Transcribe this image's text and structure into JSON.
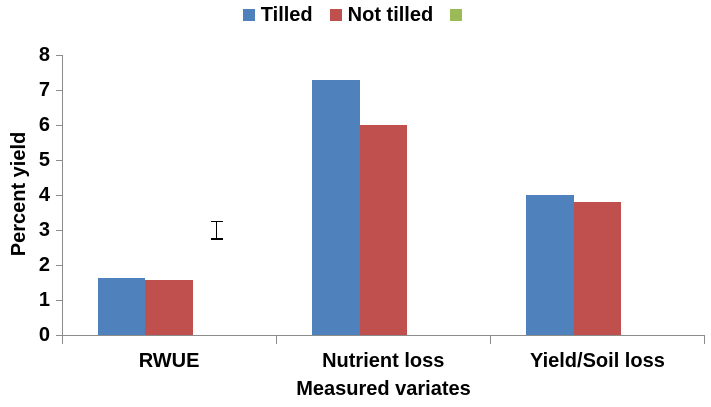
{
  "chart_data": {
    "type": "bar",
    "title": "",
    "categories": [
      "RWUE",
      "Nutrient loss",
      "Yield/Soil loss"
    ],
    "series": [
      {
        "name": "Tilled",
        "color": "#4F81BD",
        "values": [
          1.62,
          7.3,
          4.0
        ]
      },
      {
        "name": "Not tilled",
        "color": "#C0504D",
        "values": [
          1.58,
          6.0,
          3.8
        ]
      },
      {
        "name": "",
        "color": "#9BBB59",
        "values": [
          0,
          0,
          0
        ]
      }
    ],
    "error_bars": [
      {
        "series_index": 2,
        "category_index": 0,
        "low": 2.75,
        "high": 3.25
      }
    ],
    "xlabel": "Measured variates",
    "ylabel": "Percent yield",
    "ylim": [
      0,
      8
    ],
    "y_ticks": [
      0,
      1,
      2,
      3,
      4,
      5,
      6,
      7,
      8
    ],
    "grid": false,
    "legend_position": "top-center"
  },
  "colors": {
    "axis": "#8c8c8c",
    "text": "#000000",
    "error_bar": "#000000",
    "background": "#ffffff"
  }
}
